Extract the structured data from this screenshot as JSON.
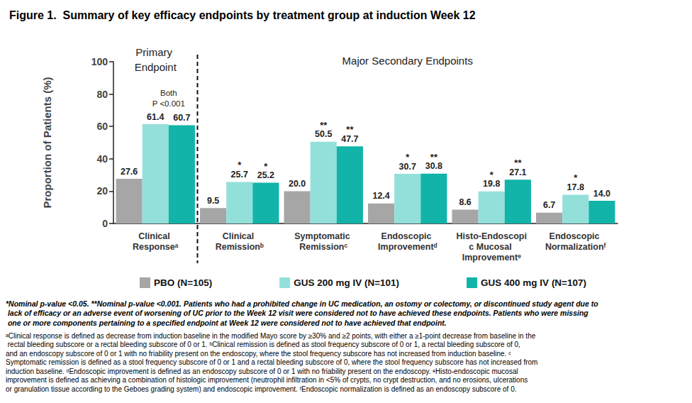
{
  "chart_data": {
    "type": "bar",
    "title": "Figure 1.  Summary of key efficacy endpoints by treatment group at induction Week 12",
    "y_label": "Proportion of Patients (%)",
    "categories": [
      "Clinical Responseᵃ",
      "Clinical Remissionᵇ",
      "Symptomatic Remissionᶜ",
      "Endoscopic Improvementᵈ",
      "Histo-Endoscopic Mucosal Improvementᵉ",
      "Endoscopic Normalizationᶠ"
    ],
    "series": [
      {
        "name": "PBO (N=105)",
        "color": "#a6a6a6",
        "values": [
          27.6,
          9.5,
          20.0,
          12.4,
          8.6,
          6.7
        ],
        "value_labels": [
          "27.6",
          "9.5",
          "20.0",
          "12.4",
          "8.6",
          "6.7"
        ],
        "significance": [
          null,
          null,
          null,
          null,
          null,
          null
        ]
      },
      {
        "name": "GUS 200 mg IV (N=101)",
        "color": "#93e0db",
        "values": [
          61.4,
          25.7,
          50.5,
          30.7,
          19.8,
          17.8
        ],
        "value_labels": [
          "61.4",
          "25.7",
          "50.5",
          "30.7",
          "19.8",
          "17.8"
        ],
        "significance": [
          null,
          "*",
          "**",
          "*",
          "*",
          "*"
        ]
      },
      {
        "name": "GUS 400 mg IV (N=107)",
        "color": "#12b3a8",
        "values": [
          60.7,
          25.2,
          47.7,
          30.8,
          27.1,
          14.0
        ],
        "value_labels": [
          "60.7",
          "25.2",
          "47.7",
          "30.8",
          "27.1",
          "14.0"
        ],
        "significance": [
          null,
          "*",
          "**",
          "**",
          "**",
          null
        ]
      }
    ],
    "ylim": [
      0,
      100
    ],
    "yticks": [
      0,
      20,
      40,
      60,
      80,
      100
    ],
    "grid": false,
    "legend": "bottom",
    "data_labels": true,
    "group_labels": [
      {
        "text": "Primary Endpoint",
        "from": "Clinical Responseᵃ",
        "to": "Clinical Responseᵃ"
      },
      {
        "text": "Major Secondary Endpoints",
        "from": "Clinical Remissionᵇ",
        "to": "Endoscopic Normalizationᶠ"
      }
    ],
    "annotations": [
      {
        "text": "Both\nP <0.001",
        "category": "Clinical Responseᵃ",
        "series": [
          "GUS 200 mg IV (N=101)",
          "GUS 400 mg IV (N=107)"
        ]
      }
    ],
    "notes": [
      "*Nominal p-value <0.05. **Nominal p-value <0.001. Patients who had a prohibited change in UC medication, an ostomy or colectomy, or discontinued study agent due to lack of efficacy or an adverse event of worsening of UC prior to the Week 12 visit were considered not to have achieved these endpoints. Patients who were missing one or more components pertaining to a specified endpoint at Week 12 were considered not to have achieved that endpoint.",
      "ᵃClinical response is defined as decrease from induction baseline in the modified Mayo score by ≥30% and ≥2 points, with either a ≥1-point decrease from baseline in the rectal bleeding subscore or a rectal bleeding subscore of 0 or 1. ᵇClinical remission is defined as stool frequency subscore of 0 or 1, a rectal bleeding subscore of 0, and an endoscopy subscore of 0 or 1 with no friability present on the endoscopy, where the stool frequency subscore has not increased from induction baseline. ᶜSymptomatic remission is defined as a stool frequency subscore of 0 or 1 and a rectal bleeding subscore of 0, where the stool frequency subscore has not increased from induction baseline. ᵈEndoscopic improvement is defined as an endoscopy subscore of 0 or 1 with no friability present on the endoscopy. ᵉHisto-endoscopic mucosal improvement is defined as achieving a combination of histologic improvement (neutrophil infiltration in <5% of crypts, no crypt destruction, and no erosions, ulcerations or granulation tissue according to the Geboes grading system) and endoscopic improvement. ᶠEndoscopic normalization is defined as an endoscopy subscore of 0."
    ]
  }
}
